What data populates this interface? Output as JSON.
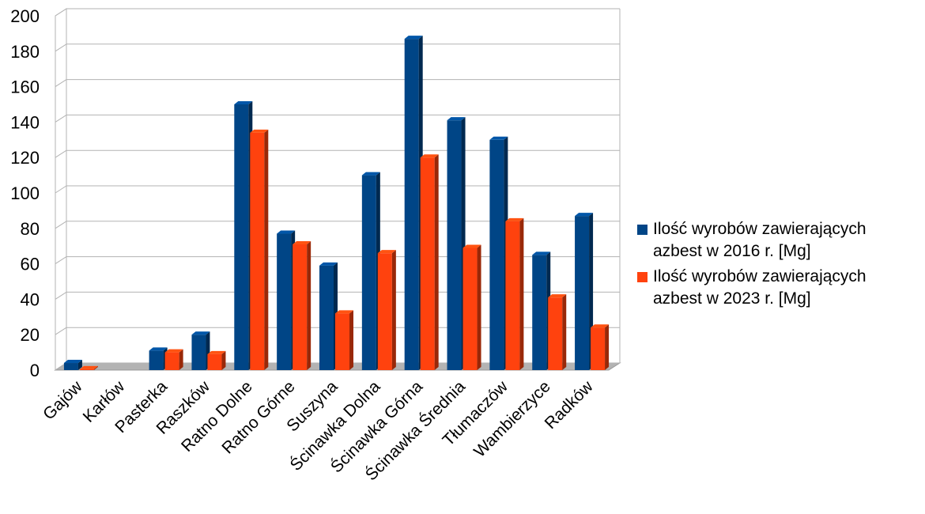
{
  "chart_data": {
    "type": "bar",
    "title": "",
    "xlabel": "",
    "ylabel": "",
    "ylim": [
      0,
      200
    ],
    "yticks": [
      0,
      20,
      40,
      60,
      80,
      100,
      120,
      140,
      160,
      180,
      200
    ],
    "grid": true,
    "legend_position": "right",
    "style": "3d",
    "categories": [
      "Gajów",
      "Karłów",
      "Pasterka",
      "Raszków",
      "Ratno Dolne",
      "Ratno Górne",
      "Suszyna",
      "Ścinawka Dolna",
      "Ścinawka Górna",
      "Ścinawka Średnia",
      "Tłumaczów",
      "Wambierzyce",
      "Radków"
    ],
    "series": [
      {
        "name": "Ilość wyrobów zawierających azbest w 2016 r. [Mg]",
        "color": "#004586",
        "values": [
          4,
          0,
          11,
          20,
          150,
          77,
          59,
          110,
          187,
          141,
          130,
          65,
          87
        ]
      },
      {
        "name": "Ilość wyrobów zawierających azbest w 2023 r. [Mg]",
        "color": "#ff420e",
        "values": [
          0.5,
          0,
          10,
          9,
          134,
          71,
          32,
          66,
          120,
          69,
          84,
          41,
          24
        ]
      }
    ]
  },
  "legend": {
    "items": [
      {
        "line1": "Ilość wyrobów zawierających",
        "line2": "azbest w 2016 r. [Mg]",
        "color": "#004586"
      },
      {
        "line1": "Ilość wyrobów zawierających",
        "line2": "azbest w 2023 r. [Mg]",
        "color": "#ff420e"
      }
    ]
  }
}
